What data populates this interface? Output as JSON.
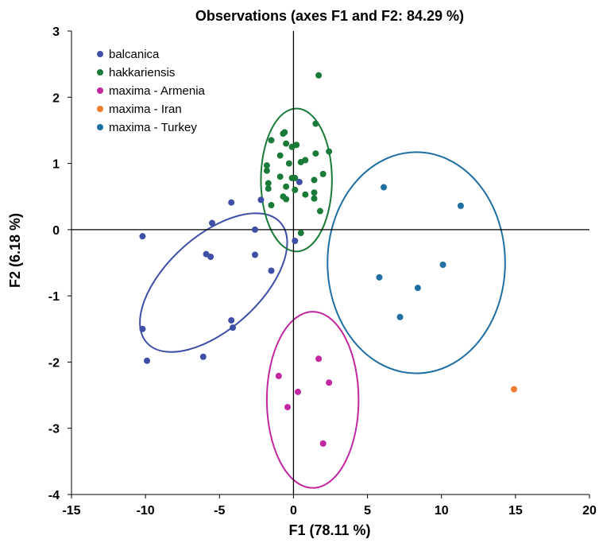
{
  "chart_data": {
    "type": "scatter",
    "title": "Observations (axes F1 and F2: 84.29 %)",
    "xlabel": "F1 (78.11 %)",
    "ylabel": "F2 (6.18 %)",
    "xlim": [
      -15,
      20
    ],
    "ylim": [
      -4,
      3
    ],
    "x_ticks": [
      -15,
      -10,
      -5,
      0,
      5,
      10,
      15,
      20
    ],
    "y_ticks": [
      -4,
      -3,
      -2,
      -1,
      0,
      1,
      2,
      3
    ],
    "x_tick_labels": [
      "-15",
      "-10",
      "-5",
      "0",
      "5",
      "10",
      "15",
      "20"
    ],
    "y_tick_labels": [
      "-4",
      "-3",
      "-2",
      "-1",
      "0",
      "1",
      "2",
      "3"
    ],
    "grid": false,
    "legend_position": "top-left",
    "series": [
      {
        "name": "balcanica",
        "color": "#3f4ea6",
        "points": [
          {
            "x": -10.2,
            "y": -0.1
          },
          {
            "x": -10.2,
            "y": -1.5
          },
          {
            "x": -9.9,
            "y": -1.98
          },
          {
            "x": -6.1,
            "y": -1.92
          },
          {
            "x": -5.9,
            "y": -0.37
          },
          {
            "x": -5.5,
            "y": 0.1
          },
          {
            "x": -5.6,
            "y": -0.41
          },
          {
            "x": -4.2,
            "y": 0.41
          },
          {
            "x": -4.2,
            "y": -1.37
          },
          {
            "x": -4.1,
            "y": -1.48
          },
          {
            "x": -2.6,
            "y": 0.0
          },
          {
            "x": -2.6,
            "y": -0.38
          },
          {
            "x": -2.2,
            "y": 0.45
          },
          {
            "x": -1.5,
            "y": -0.62
          },
          {
            "x": 0.1,
            "y": -0.17
          },
          {
            "x": 0.4,
            "y": 0.72
          }
        ]
      },
      {
        "name": "hakkariensis",
        "color": "#1a7a38",
        "points": [
          {
            "x": 1.7,
            "y": 2.33
          },
          {
            "x": -0.6,
            "y": 1.47
          },
          {
            "x": -0.7,
            "y": 1.45
          },
          {
            "x": 1.5,
            "y": 1.6
          },
          {
            "x": -1.5,
            "y": 1.35
          },
          {
            "x": -0.5,
            "y": 1.3
          },
          {
            "x": -0.1,
            "y": 1.25
          },
          {
            "x": 0.2,
            "y": 1.28
          },
          {
            "x": 2.4,
            "y": 1.18
          },
          {
            "x": 1.5,
            "y": 1.15
          },
          {
            "x": -0.9,
            "y": 1.12
          },
          {
            "x": 0.5,
            "y": 1.02
          },
          {
            "x": 0.8,
            "y": 1.05
          },
          {
            "x": -0.3,
            "y": 1.0
          },
          {
            "x": -1.8,
            "y": 0.97
          },
          {
            "x": -1.8,
            "y": 0.89
          },
          {
            "x": -0.9,
            "y": 0.8
          },
          {
            "x": -0.1,
            "y": 0.78
          },
          {
            "x": 0.1,
            "y": 0.78
          },
          {
            "x": 1.4,
            "y": 0.75
          },
          {
            "x": 2.0,
            "y": 0.84
          },
          {
            "x": -1.7,
            "y": 0.7
          },
          {
            "x": -0.5,
            "y": 0.65
          },
          {
            "x": -1.7,
            "y": 0.62
          },
          {
            "x": 0.1,
            "y": 0.6
          },
          {
            "x": 0.8,
            "y": 0.53
          },
          {
            "x": 1.4,
            "y": 0.56
          },
          {
            "x": 1.4,
            "y": 0.47
          },
          {
            "x": -0.7,
            "y": 0.5
          },
          {
            "x": -0.5,
            "y": 0.46
          },
          {
            "x": -1.5,
            "y": 0.37
          },
          {
            "x": 1.8,
            "y": 0.28
          },
          {
            "x": 0.5,
            "y": -0.05
          }
        ]
      },
      {
        "name": "maxima - Armenia",
        "color": "#c2279f",
        "points": [
          {
            "x": 1.7,
            "y": -1.95
          },
          {
            "x": -1.0,
            "y": -2.21
          },
          {
            "x": 2.4,
            "y": -2.31
          },
          {
            "x": 0.3,
            "y": -2.45
          },
          {
            "x": -0.4,
            "y": -2.68
          },
          {
            "x": 2.0,
            "y": -3.23
          }
        ]
      },
      {
        "name": "maxima - Iran",
        "color": "#f07a2e",
        "points": [
          {
            "x": 14.9,
            "y": -2.41
          }
        ]
      },
      {
        "name": "maxima - Turkey",
        "color": "#1f6fa3",
        "points": [
          {
            "x": 6.1,
            "y": 0.64
          },
          {
            "x": 11.3,
            "y": 0.36
          },
          {
            "x": 10.1,
            "y": -0.53
          },
          {
            "x": 5.8,
            "y": -0.72
          },
          {
            "x": 8.4,
            "y": -0.88
          },
          {
            "x": 7.2,
            "y": -1.32
          }
        ]
      }
    ],
    "ellipses": [
      {
        "series": "balcanica",
        "color": "#3f4ea6",
        "cx": -5.4,
        "cy": -0.8,
        "rx": 8.2,
        "ry": 0.95,
        "angle_deg": 42
      },
      {
        "series": "hakkariensis",
        "color": "#1a7a38",
        "cx": 0.2,
        "cy": 0.75,
        "rx": 2.4,
        "ry": 1.08,
        "angle_deg": 0
      },
      {
        "series": "maxima - Armenia",
        "color": "#c2279f",
        "cx": 1.3,
        "cy": -2.57,
        "rx": 3.1,
        "ry": 1.33,
        "angle_deg": 0
      },
      {
        "series": "maxima - Turkey",
        "color": "#1f6fa3",
        "cx": 8.3,
        "cy": -0.5,
        "rx": 6.0,
        "ry": 1.67,
        "angle_deg": 0
      }
    ]
  }
}
